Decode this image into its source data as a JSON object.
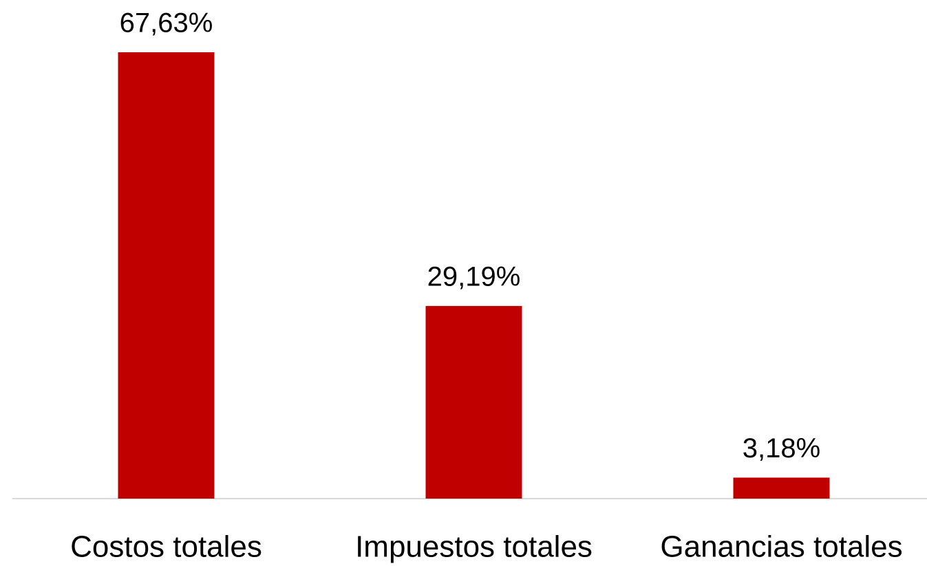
{
  "chart_data": {
    "type": "bar",
    "categories": [
      "Costos totales",
      "Impuestos totales",
      "Ganancias totales"
    ],
    "values": [
      67.63,
      29.19,
      3.18
    ],
    "value_labels": [
      "67,63%",
      "29,19%",
      "3,18%"
    ],
    "color": "#c00000"
  }
}
